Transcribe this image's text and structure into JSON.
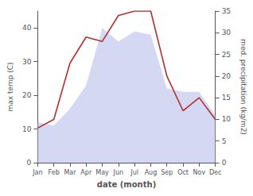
{
  "chart_data": {
    "type": "line",
    "categories": [
      "Jan",
      "Feb",
      "Mar",
      "Apr",
      "May",
      "Jun",
      "Jul",
      "Aug",
      "Sep",
      "Oct",
      "Nov",
      "Dec"
    ],
    "xlabel": "date (month)",
    "ylabel": "max temp (C)",
    "y2label": "med. precipitation (kg/m2)",
    "series": [
      {
        "type": "area",
        "color": "#b0b8e8",
        "values": [
          12,
          11,
          16,
          23,
          40,
          36,
          39,
          38,
          22,
          21,
          21,
          14
        ]
      },
      {
        "type": "line",
        "color": "#b03030",
        "axis": "y2",
        "values": [
          8,
          10,
          23,
          29,
          28,
          34,
          35,
          35,
          20,
          12,
          15,
          10
        ]
      }
    ],
    "ylim": [
      0,
      45
    ],
    "yticks": [
      0,
      10,
      20,
      30,
      40
    ],
    "y2lim": [
      0,
      35
    ],
    "y2ticks": [
      0,
      5,
      10,
      15,
      20,
      25,
      30,
      35
    ],
    "grid": false
  }
}
